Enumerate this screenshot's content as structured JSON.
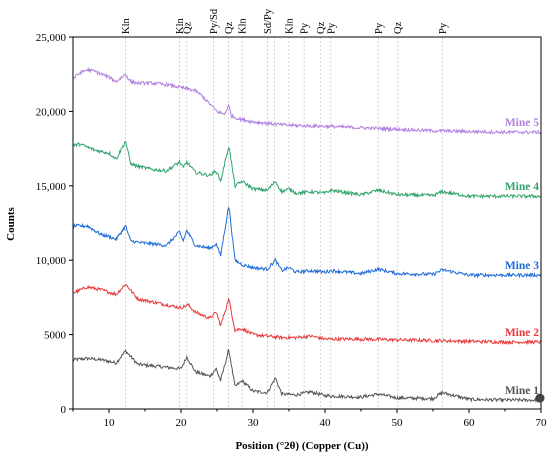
{
  "chart_data": {
    "type": "line",
    "xlabel": "Position (°2θ) (Copper (Cu))",
    "ylabel": "Counts",
    "xlim": [
      5,
      70
    ],
    "ylim": [
      0,
      25000
    ],
    "x_ticks": [
      10,
      20,
      30,
      40,
      50,
      60,
      70
    ],
    "x_tick_labels": [
      "10",
      "20",
      "30",
      "40",
      "50",
      "60",
      "70"
    ],
    "y_ticks": [
      0,
      5000,
      10000,
      15000,
      20000,
      25000
    ],
    "y_tick_labels": [
      "0",
      "5000",
      "10,000",
      "15,000",
      "20,000",
      "25,000"
    ],
    "grid": false,
    "reference_lines": [
      {
        "x": 12.3,
        "label": "Kln"
      },
      {
        "x": 19.8,
        "label": "Kln"
      },
      {
        "x": 20.8,
        "label": "Qz"
      },
      {
        "x": 24.5,
        "label": "Py/Sd"
      },
      {
        "x": 26.6,
        "label": "Qz"
      },
      {
        "x": 28.5,
        "label": "Kln"
      },
      {
        "x": 32.0,
        "label": "Sd/Py"
      },
      {
        "x": 33.0,
        "label": ""
      },
      {
        "x": 35.0,
        "label": "Kln"
      },
      {
        "x": 37.1,
        "label": "Py"
      },
      {
        "x": 39.4,
        "label": "Qz"
      },
      {
        "x": 40.8,
        "label": "Py"
      },
      {
        "x": 47.4,
        "label": "Py"
      },
      {
        "x": 50.1,
        "label": "Qz"
      },
      {
        "x": 56.3,
        "label": "Py"
      }
    ],
    "series": [
      {
        "name": "Mine 1",
        "color": "#555555",
        "x": [
          5,
          7,
          9,
          11,
          12.3,
          14,
          16,
          18,
          20,
          20.8,
          22,
          24,
          24.9,
          25.5,
          26.64,
          27.5,
          28.5,
          30,
          32,
          33.1,
          34,
          36,
          38,
          40,
          42,
          45,
          47.4,
          50,
          55,
          56.3,
          60,
          65,
          70
        ],
        "values": [
          3300,
          3400,
          3300,
          3100,
          3900,
          3000,
          2900,
          2800,
          2700,
          3500,
          2500,
          2200,
          2700,
          1900,
          4000,
          1500,
          1900,
          1200,
          1100,
          2100,
          1000,
          950,
          1150,
          900,
          850,
          800,
          1000,
          750,
          700,
          1100,
          650,
          600,
          600
        ]
      },
      {
        "name": "Mine 2",
        "color": "#e8393a",
        "x": [
          5,
          7,
          9,
          11,
          12.3,
          14,
          16,
          18,
          20,
          21,
          22,
          24,
          24.9,
          25.5,
          26.64,
          27.5,
          28.5,
          30,
          32,
          34,
          36,
          38,
          40,
          45,
          50,
          55,
          60,
          65,
          70
        ],
        "values": [
          7800,
          8200,
          8000,
          7700,
          8400,
          7400,
          7200,
          7000,
          6800,
          7000,
          6500,
          6100,
          6500,
          5600,
          7400,
          5300,
          5400,
          5000,
          4900,
          4800,
          4800,
          4900,
          4700,
          4700,
          4650,
          4600,
          4550,
          4500,
          4500
        ]
      },
      {
        "name": "Mine 3",
        "color": "#1f6bd8",
        "x": [
          5,
          7,
          9,
          10,
          11,
          12.3,
          13,
          14,
          16,
          18,
          19.8,
          20.3,
          20.8,
          22,
          24,
          24.9,
          25.5,
          26.64,
          27.5,
          28.5,
          30,
          32,
          33.1,
          34,
          35,
          36,
          38,
          40,
          40.8,
          45,
          47.4,
          50,
          55,
          56.3,
          60,
          65,
          70
        ],
        "values": [
          12300,
          12300,
          11700,
          11600,
          11400,
          12300,
          11300,
          11200,
          11100,
          11000,
          11900,
          11300,
          12000,
          11000,
          10800,
          11100,
          10300,
          13700,
          10000,
          9700,
          9500,
          9400,
          10000,
          9300,
          9500,
          9200,
          9300,
          9200,
          9300,
          9100,
          9400,
          9100,
          9050,
          9350,
          9000,
          9000,
          9000
        ]
      },
      {
        "name": "Mine 4",
        "color": "#2fa36b",
        "x": [
          5,
          6,
          8,
          10,
          11,
          12.3,
          13,
          14,
          16,
          18,
          19.8,
          20.3,
          20.8,
          22,
          24,
          24.9,
          25.5,
          26.64,
          27.5,
          28.5,
          30,
          32,
          33.1,
          34,
          35,
          36,
          38,
          40,
          40.8,
          45,
          47.4,
          50,
          55,
          56.3,
          60,
          65,
          70
        ],
        "values": [
          17700,
          17800,
          17400,
          17200,
          16800,
          18000,
          16500,
          16300,
          16100,
          16000,
          16600,
          16200,
          16600,
          15900,
          15700,
          16000,
          15300,
          17700,
          15000,
          15300,
          14800,
          14700,
          15300,
          14600,
          14800,
          14500,
          14600,
          14500,
          14700,
          14400,
          14700,
          14400,
          14350,
          14600,
          14300,
          14300,
          14300
        ]
      },
      {
        "name": "Mine 5",
        "color": "#b07fe0",
        "x": [
          5,
          6,
          7,
          8,
          9,
          10,
          11,
          12.3,
          13,
          14,
          16,
          18,
          20,
          22,
          23,
          24,
          25,
          26,
          26.64,
          27,
          28,
          30,
          32,
          34,
          36,
          40,
          45,
          50,
          55,
          60,
          65,
          70
        ],
        "values": [
          22200,
          22600,
          22800,
          22700,
          22500,
          22300,
          22000,
          22500,
          22000,
          21900,
          21900,
          21800,
          21600,
          21400,
          21000,
          20500,
          20000,
          19800,
          20400,
          19700,
          19500,
          19300,
          19200,
          19100,
          19050,
          19000,
          18900,
          18800,
          18700,
          18650,
          18600,
          18600
        ]
      }
    ]
  }
}
